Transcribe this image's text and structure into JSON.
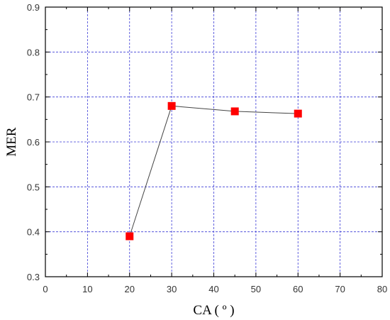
{
  "chart_data": {
    "type": "line",
    "xlabel": "CA ( º )",
    "ylabel": "MER",
    "xlim": [
      0,
      80
    ],
    "ylim": [
      0.3,
      0.9
    ],
    "x_ticks": [
      "0",
      "10",
      "20",
      "30",
      "40",
      "50",
      "60",
      "70",
      "80"
    ],
    "y_ticks": [
      "0.3",
      "0.4",
      "0.5",
      "0.6",
      "0.7",
      "0.8",
      "0.9"
    ],
    "grid": true,
    "series": [
      {
        "x": [
          20,
          30,
          45,
          60
        ],
        "y": [
          0.39,
          0.68,
          0.668,
          0.663
        ],
        "marker": "square",
        "marker_color": "#ff0000",
        "line_color": "#444444"
      }
    ],
    "colors": {
      "grid": "#3b3bd6",
      "marker": "#ff0000",
      "line": "#444444"
    }
  }
}
